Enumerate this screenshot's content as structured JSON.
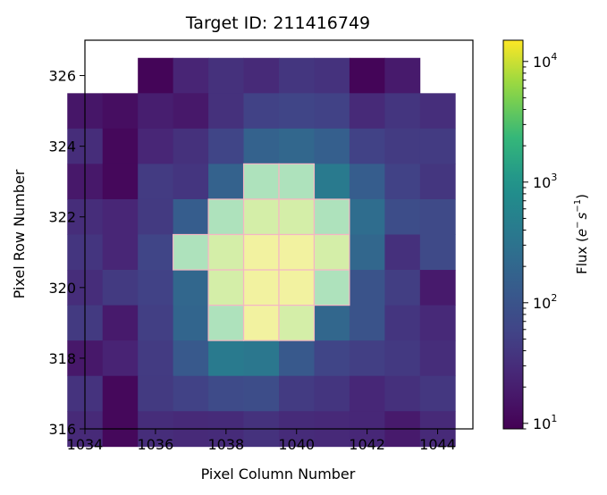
{
  "chart_data": {
    "type": "heatmap",
    "title": "Target ID: 211416749",
    "xlabel": "Pixel Column Number",
    "ylabel": "Pixel Row Number",
    "xlim": [
      1034,
      1045
    ],
    "ylim": [
      316,
      327
    ],
    "x_ticks": [
      1034,
      1036,
      1038,
      1040,
      1042,
      1044
    ],
    "x_tick_labels": [
      "1034",
      "1036",
      "1038",
      "1040",
      "1042",
      "1044"
    ],
    "y_ticks": [
      316,
      318,
      320,
      322,
      324,
      326
    ],
    "y_tick_labels": [
      "316",
      "318",
      "320",
      "322",
      "324",
      "326"
    ],
    "colorbar": {
      "label_prefix": "Flux (",
      "label_e": "e",
      "label_sup1": "−",
      "label_s": "s",
      "label_sup2": "−1",
      "label_suffix": ")",
      "scale": "log",
      "colormap": "viridis",
      "range": [
        9,
        15000
      ],
      "major_ticks": [
        10,
        100,
        1000,
        10000
      ],
      "tick_base": "10",
      "tick_exponents": [
        "1",
        "2",
        "3",
        "4"
      ]
    },
    "columns": [
      1034,
      1035,
      1036,
      1037,
      1038,
      1039,
      1040,
      1041,
      1042,
      1043,
      1044
    ],
    "rows": [
      326,
      325,
      324,
      323,
      322,
      321,
      320,
      319,
      318,
      317,
      316
    ],
    "flux": [
      [
        null,
        null,
        10,
        24,
        34,
        28,
        39,
        35,
        10,
        18,
        null
      ],
      [
        16,
        13,
        20,
        17,
        34,
        55,
        60,
        55,
        28,
        38,
        31
      ],
      [
        30,
        11,
        25,
        34,
        60,
        170,
        200,
        150,
        55,
        45,
        45
      ],
      [
        17,
        11,
        45,
        38,
        170,
        3000,
        3000,
        400,
        140,
        55,
        39
      ],
      [
        30,
        25,
        43,
        140,
        3000,
        7000,
        7000,
        3000,
        250,
        80,
        70
      ],
      [
        38,
        25,
        60,
        3000,
        7000,
        12000,
        12000,
        7000,
        200,
        33,
        70
      ],
      [
        30,
        43,
        55,
        200,
        7000,
        12000,
        12000,
        3000,
        100,
        48,
        18
      ],
      [
        43,
        18,
        50,
        190,
        3000,
        12000,
        7000,
        200,
        100,
        38,
        27
      ],
      [
        17,
        23,
        45,
        120,
        400,
        350,
        120,
        60,
        50,
        42,
        30
      ],
      [
        36,
        11,
        43,
        55,
        75,
        80,
        45,
        38,
        26,
        33,
        40
      ],
      [
        28,
        11,
        30,
        28,
        29,
        35,
        29,
        27,
        26,
        18,
        28
      ]
    ],
    "mask_color": "#f4b6c2",
    "mask": [
      [
        0,
        0,
        0,
        0,
        0,
        0,
        0,
        0,
        0,
        0,
        0
      ],
      [
        0,
        0,
        0,
        0,
        0,
        0,
        0,
        0,
        0,
        0,
        0
      ],
      [
        0,
        0,
        0,
        0,
        0,
        0,
        0,
        0,
        0,
        0,
        0
      ],
      [
        0,
        0,
        0,
        0,
        0,
        1,
        1,
        0,
        0,
        0,
        0
      ],
      [
        0,
        0,
        0,
        0,
        1,
        1,
        1,
        1,
        0,
        0,
        0
      ],
      [
        0,
        0,
        0,
        1,
        1,
        1,
        1,
        1,
        0,
        0,
        0
      ],
      [
        0,
        0,
        0,
        0,
        1,
        1,
        1,
        1,
        0,
        0,
        0
      ],
      [
        0,
        0,
        0,
        0,
        1,
        1,
        1,
        0,
        0,
        0,
        0
      ],
      [
        0,
        0,
        0,
        0,
        0,
        0,
        0,
        0,
        0,
        0,
        0
      ],
      [
        0,
        0,
        0,
        0,
        0,
        0,
        0,
        0,
        0,
        0,
        0
      ],
      [
        0,
        0,
        0,
        0,
        0,
        0,
        0,
        0,
        0,
        0,
        0
      ]
    ]
  }
}
